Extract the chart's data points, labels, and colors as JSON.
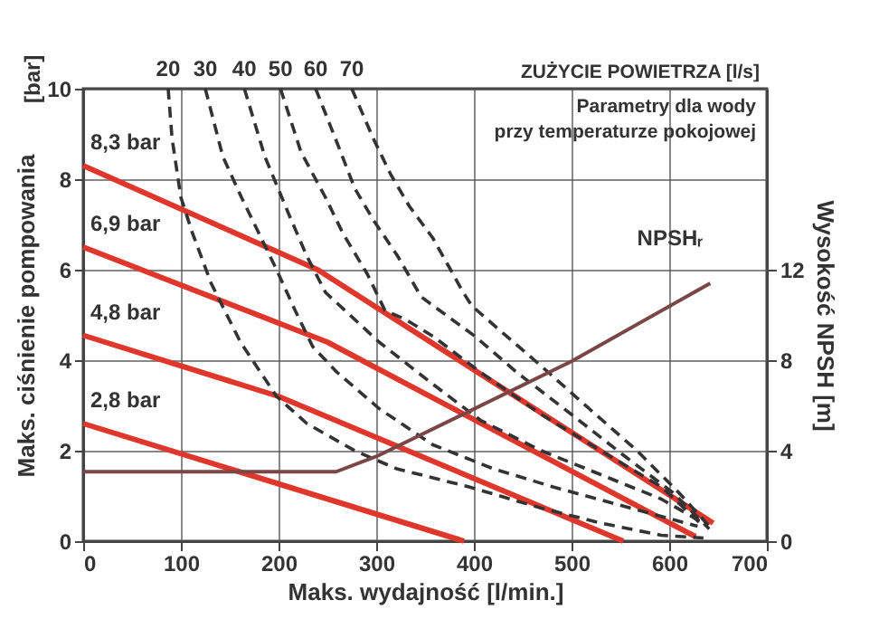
{
  "chart_data": {
    "type": "line",
    "xlabel": "Maks. wydajność [l/min.]",
    "ylabel": "Maks. ciśnienie pompowania",
    "y2label": "Wysokość NPSH [m]",
    "annotations": [
      "Parametry dla wody przy temperaturze pokojowej",
      "ZUŻYCIE POWIETRZA [l/s]",
      "[bar]"
    ],
    "xlim": [
      0,
      700
    ],
    "xticks": [
      0,
      100,
      200,
      300,
      400,
      500,
      600,
      700
    ],
    "ylim": [
      0,
      10
    ],
    "yticks": [
      0,
      2,
      4,
      6,
      8,
      10
    ],
    "y2lim": [
      0,
      20
    ],
    "y2ticks": [
      0,
      4,
      8,
      12
    ],
    "grid": true,
    "legend": false,
    "marker": "none",
    "series": [
      {
        "name": "8,3 bar",
        "color": "#e0372c",
        "line_style": "solid",
        "x": [
          0,
          240,
          645
        ],
        "values": [
          8.3,
          6.0,
          0.4
        ]
      },
      {
        "name": "6,9 bar",
        "color": "#e0372c",
        "line_style": "solid",
        "x": [
          0,
          250,
          627
        ],
        "values": [
          6.5,
          4.4,
          0.1
        ]
      },
      {
        "name": "4,8 bar",
        "color": "#e0372c",
        "line_style": "solid",
        "x": [
          0,
          200,
          553
        ],
        "values": [
          4.55,
          3.2,
          0
        ]
      },
      {
        "name": "2,8 bar",
        "color": "#e0372c",
        "line_style": "solid",
        "x": [
          0,
          390
        ],
        "values": [
          2.6,
          0
        ]
      },
      {
        "name": "20",
        "color": "#333333",
        "line_style": "dashed",
        "x": [
          87,
          91,
          100,
          112,
          131,
          161,
          198,
          229,
          278,
          321,
          395,
          469,
          530,
          592,
          635
        ],
        "values": [
          10,
          8.9,
          7.6,
          6.8,
          5.7,
          4.4,
          3.2,
          2.6,
          2.0,
          1.6,
          1.2,
          0.73,
          0.4,
          0.13,
          0.07
        ]
      },
      {
        "name": "30",
        "color": "#333333",
        "line_style": "dashed",
        "x": [
          125,
          143,
          162,
          180,
          198,
          217,
          235,
          260,
          303,
          358,
          420,
          481,
          561,
          629
        ],
        "values": [
          10,
          8.5,
          7.6,
          6.8,
          6.0,
          5.1,
          4.3,
          3.73,
          2.93,
          2.13,
          1.6,
          1.2,
          0.73,
          0.33
        ]
      },
      {
        "name": "40",
        "color": "#333333",
        "line_style": "dashed",
        "x": [
          165,
          186,
          211,
          229,
          248,
          303,
          358,
          407,
          469,
          530,
          592,
          635
        ],
        "values": [
          10,
          8.5,
          7.2,
          6.3,
          5.5,
          4.4,
          3.47,
          2.67,
          2.0,
          1.47,
          0.93,
          0.4
        ]
      },
      {
        "name": "50",
        "color": "#333333",
        "line_style": "dashed",
        "x": [
          202,
          223,
          248,
          266,
          291,
          309,
          330,
          358,
          407,
          469,
          530,
          592,
          635
        ],
        "values": [
          10,
          8.6,
          7.6,
          6.8,
          5.9,
          5.1,
          4.9,
          4.53,
          3.73,
          2.8,
          2.0,
          1.2,
          0.33
        ]
      },
      {
        "name": "60",
        "color": "#333333",
        "line_style": "dashed",
        "x": [
          238,
          260,
          278,
          297,
          322,
          346,
          401,
          444,
          500,
          555,
          604,
          641
        ],
        "values": [
          10,
          8.8,
          7.8,
          7.1,
          6.3,
          5.4,
          4.53,
          3.73,
          2.8,
          1.87,
          1.07,
          0.27
        ]
      },
      {
        "name": "70",
        "color": "#333333",
        "line_style": "dashed",
        "x": [
          275,
          297,
          315,
          334,
          358,
          389,
          398,
          426,
          469,
          518,
          567,
          610,
          641
        ],
        "values": [
          10,
          8.9,
          8.1,
          7.4,
          6.7,
          5.5,
          5.2,
          4.67,
          3.87,
          2.93,
          2.0,
          1.07,
          0.33
        ]
      },
      {
        "name": "NPSHᵣ",
        "color": "#7a4646",
        "line_style": "solid",
        "axis": "y2",
        "x": [
          0,
          259,
          302,
          500,
          642
        ],
        "values": [
          3.07,
          3.07,
          3.78,
          7.95,
          11.4
        ]
      }
    ]
  }
}
